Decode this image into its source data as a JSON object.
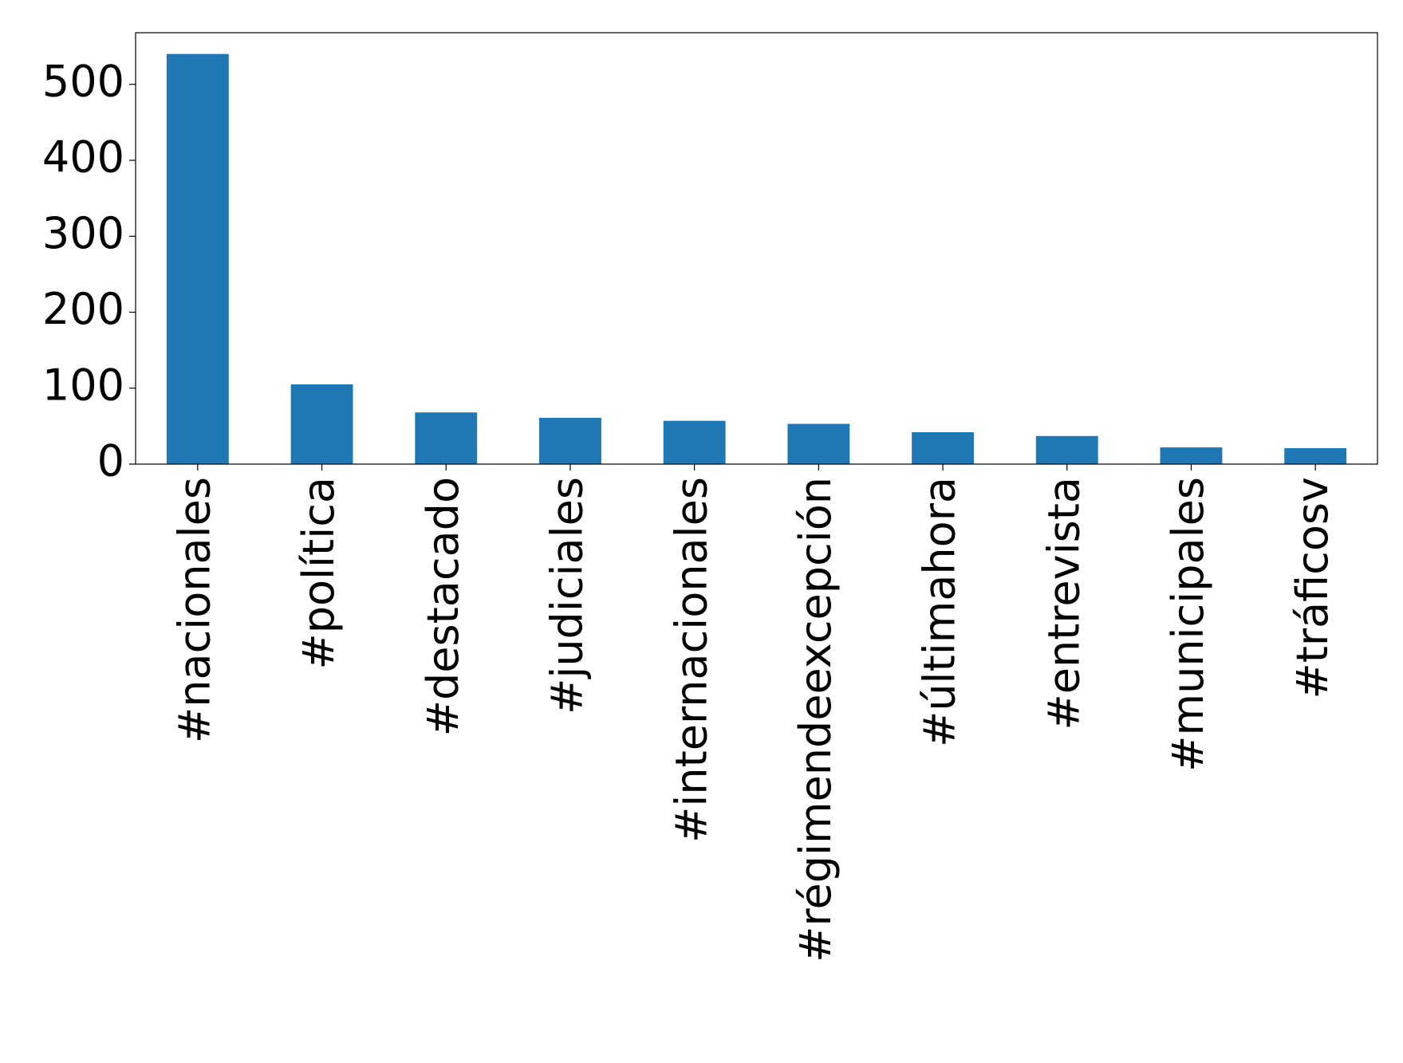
{
  "chart_data": {
    "type": "bar",
    "categories": [
      "#nacionales",
      "#política",
      "#destacado",
      "#judiciales",
      "#internacionales",
      "#régimendeexcepción",
      "#últimahora",
      "#entrevista",
      "#municipales",
      "#tráficosv"
    ],
    "values": [
      540,
      105,
      68,
      61,
      57,
      53,
      42,
      37,
      22,
      21
    ],
    "color": "#1f77b4",
    "ylim": [
      0,
      568
    ],
    "yticks": [
      0,
      100,
      200,
      300,
      400,
      500
    ],
    "grid": false
  }
}
